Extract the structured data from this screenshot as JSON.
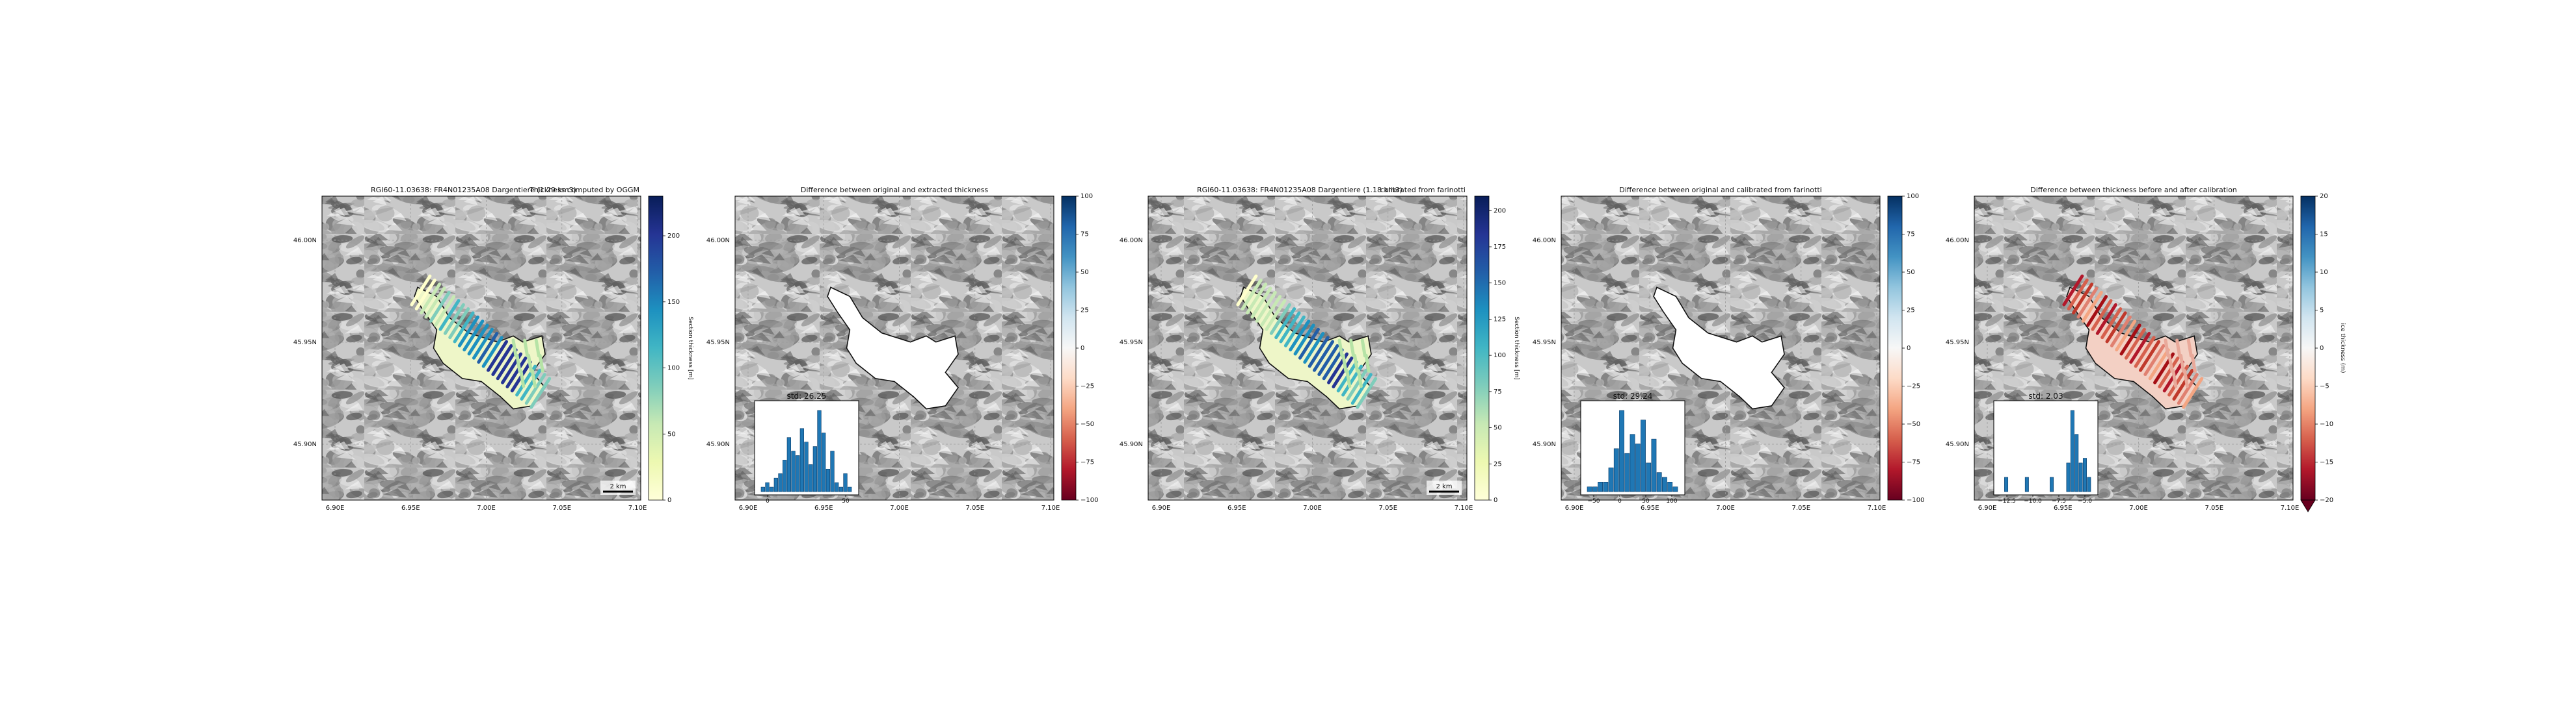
{
  "figure": {
    "panels": [
      {
        "id": "thickness-oggm",
        "title_left": "RGI60-11.03638: FR4N01235A08 Dargentiere (1.29 km3)",
        "title_right": "Thickness computed by OGGM",
        "content": "thickness",
        "colorbar": {
          "label": "Section thickness [m]",
          "ticks": [
            "0",
            "50",
            "100",
            "150",
            "200"
          ],
          "vmax": 230,
          "palette": "YlGnBu"
        },
        "scalebar": "2 km",
        "x_ticks": [
          "6.90E",
          "6.95E",
          "7.00E",
          "7.05E",
          "7.10E"
        ],
        "y_ticks": [
          "46.00N",
          "45.95N",
          "45.90N"
        ]
      },
      {
        "id": "diff-extracted",
        "title_left": "",
        "title_right": "Difference between original and extracted thickness",
        "content": "diff-blank",
        "colorbar": {
          "label": "",
          "ticks": [
            "100",
            "75",
            "50",
            "25",
            "0",
            "−25",
            "−50",
            "−75",
            "−100"
          ],
          "palette": "RdBu"
        },
        "inset": {
          "std_label": "std: 26.25",
          "ticks": [
            "0",
            "50"
          ]
        },
        "x_ticks": [
          "6.90E",
          "6.95E",
          "7.00E",
          "7.05E",
          "7.10E"
        ],
        "y_ticks": [
          "46.00N",
          "45.95N",
          "45.90N"
        ]
      },
      {
        "id": "thickness-farinotti",
        "title_left": "RGI60-11.03638: FR4N01235A08 Dargentiere (1.18 km3)",
        "title_right": "calibrated from farinotti",
        "content": "thickness",
        "colorbar": {
          "label": "Section thickness [m]",
          "ticks": [
            "0",
            "25",
            "50",
            "75",
            "100",
            "125",
            "150",
            "175",
            "200"
          ],
          "vmax": 210,
          "palette": "YlGnBu"
        },
        "scalebar": "2 km",
        "x_ticks": [
          "6.90E",
          "6.95E",
          "7.00E",
          "7.05E",
          "7.10E"
        ],
        "y_ticks": [
          "46.00N",
          "45.95N",
          "45.90N"
        ]
      },
      {
        "id": "diff-calibrated",
        "title_left": "",
        "title_right": "Difference between original and calibrated from farinotti",
        "content": "diff-blank",
        "colorbar": {
          "label": "",
          "ticks": [
            "100",
            "75",
            "50",
            "25",
            "0",
            "−25",
            "−50",
            "−75",
            "−100"
          ],
          "palette": "RdBu"
        },
        "inset": {
          "std_label": "std: 29.24",
          "ticks": [
            "−50",
            "0",
            "50",
            "100"
          ]
        },
        "x_ticks": [
          "6.90E",
          "6.95E",
          "7.00E",
          "7.05E",
          "7.10E"
        ],
        "y_ticks": [
          "46.00N",
          "45.95N",
          "45.90N"
        ]
      },
      {
        "id": "diff-calibration",
        "title_left": "",
        "title_right": "Difference between thickness before and after calibration",
        "content": "diff-red",
        "colorbar": {
          "label": "ice thickness (m)",
          "ticks": [
            "20",
            "15",
            "10",
            "5",
            "0",
            "−5",
            "−10",
            "−15",
            "−20"
          ],
          "palette": "RdBu",
          "extend": "min"
        },
        "inset": {
          "std_label": "std: 2.03",
          "ticks": [
            "−12.5",
            "−10.0",
            "−7.5",
            "−5.0"
          ]
        },
        "x_ticks": [
          "6.90E",
          "6.95E",
          "7.00E",
          "7.05E",
          "7.10E"
        ],
        "y_ticks": [
          "46.00N",
          "45.95N",
          "45.90N"
        ]
      }
    ]
  },
  "chart_data": [
    {
      "type": "heatmap",
      "title": "RGI60-11.03638: FR4N01235A08 Dargentiere (1.29 km3)   Thickness computed by OGGM",
      "xlabel": "",
      "ylabel": "",
      "x_ticks": [
        "6.90E",
        "6.95E",
        "7.00E",
        "7.05E",
        "7.10E"
      ],
      "y_ticks": [
        "46.00N",
        "45.95N",
        "45.90N"
      ],
      "colorbar_label": "Section thickness [m]",
      "colorbar_range": [
        0,
        230
      ],
      "grid": true
    },
    {
      "type": "bar",
      "title": "std: 26.25",
      "categories": [
        "-30",
        "-25",
        "-20",
        "-15",
        "-10",
        "-5",
        "0",
        "5",
        "10",
        "15",
        "20",
        "25",
        "30",
        "35",
        "40",
        "45",
        "50",
        "55",
        "60",
        "65",
        "70"
      ],
      "values": [
        1,
        2,
        1,
        3,
        4,
        7,
        12,
        9,
        8,
        14,
        11,
        6,
        10,
        18,
        13,
        5,
        9,
        2,
        1,
        4,
        1
      ],
      "ylim": [
        0,
        18
      ]
    },
    {
      "type": "heatmap",
      "title": "RGI60-11.03638: FR4N01235A08 Dargentiere (1.18 km3)   calibrated from farinotti",
      "xlabel": "",
      "ylabel": "",
      "x_ticks": [
        "6.90E",
        "6.95E",
        "7.00E",
        "7.05E",
        "7.10E"
      ],
      "y_ticks": [
        "46.00N",
        "45.95N",
        "45.90N"
      ],
      "colorbar_label": "Section thickness [m]",
      "colorbar_range": [
        0,
        210
      ],
      "grid": true
    },
    {
      "type": "bar",
      "title": "std: 29.24",
      "categories": [
        "-60",
        "-50",
        "-40",
        "-30",
        "-20",
        "-10",
        "0",
        "10",
        "20",
        "30",
        "40",
        "50",
        "60",
        "70",
        "80",
        "90",
        "100"
      ],
      "values": [
        1,
        1,
        2,
        2,
        5,
        9,
        17,
        8,
        12,
        10,
        15,
        6,
        11,
        4,
        3,
        2,
        1
      ],
      "ylim": [
        0,
        17
      ]
    },
    {
      "type": "heatmap",
      "title": "Difference between thickness before and after calibration",
      "xlabel": "",
      "ylabel": "",
      "x_ticks": [
        "6.90E",
        "6.95E",
        "7.00E",
        "7.05E",
        "7.10E"
      ],
      "y_ticks": [
        "46.00N",
        "45.95N",
        "45.90N"
      ],
      "colorbar_label": "ice thickness (m)",
      "colorbar_range": [
        -20,
        20
      ],
      "grid": true
    },
    {
      "type": "bar",
      "title": "std: 2.03",
      "categories": [
        "-14.5",
        "-14",
        "-13.5",
        "-13",
        "-12.5",
        "-12",
        "-11.5",
        "-11",
        "-10.5",
        "-10",
        "-9.5",
        "-9",
        "-8.5",
        "-8",
        "-7.5",
        "-7",
        "-6.5",
        "-6",
        "-5.5",
        "-5",
        "-4.5",
        "-4"
      ],
      "values": [
        0,
        3,
        0,
        0,
        0,
        0,
        3,
        0,
        0,
        0,
        0,
        0,
        3,
        0,
        0,
        0,
        6,
        17,
        12,
        6,
        7,
        3
      ],
      "ylim": [
        0,
        17
      ]
    }
  ]
}
